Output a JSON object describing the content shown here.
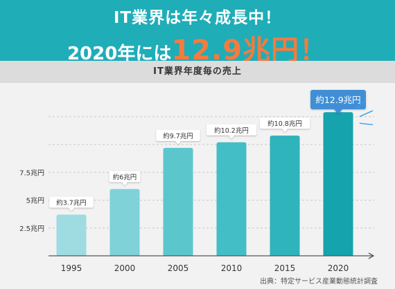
{
  "headline": {
    "line1": "IT業界は年々成長中！",
    "line2_prefix": "2020年には",
    "line2_highlight": "12.9兆円！"
  },
  "chart_data": {
    "type": "bar",
    "title": "IT業界年度毎の売上",
    "categories": [
      "1995",
      "2000",
      "2005",
      "2010",
      "2015",
      "2020"
    ],
    "values": [
      3.7,
      6,
      9.7,
      10.2,
      10.8,
      12.9
    ],
    "value_labels": [
      "約3.7兆円",
      "約6兆円",
      "約9.7兆円",
      "約10.2兆円",
      "約10.8兆円",
      "約12.9兆円"
    ],
    "ytick_values": [
      2.5,
      5,
      7.5
    ],
    "ytick_labels": [
      "2.5兆円",
      "5兆円",
      "7.5兆円"
    ],
    "grid": true,
    "source": "出典：特定サービス産業動態統計調査",
    "colors": {
      "bars": [
        "#9fdce1",
        "#7fd2d8",
        "#5cc6cd",
        "#43bec6",
        "#2fb3bc",
        "#15a3ad"
      ],
      "highlight_callout": "#3f8fd6",
      "highlight_rays": "#3aa0e8",
      "banner": "#1fadb8",
      "headline_accent": "#f47b3e"
    }
  }
}
